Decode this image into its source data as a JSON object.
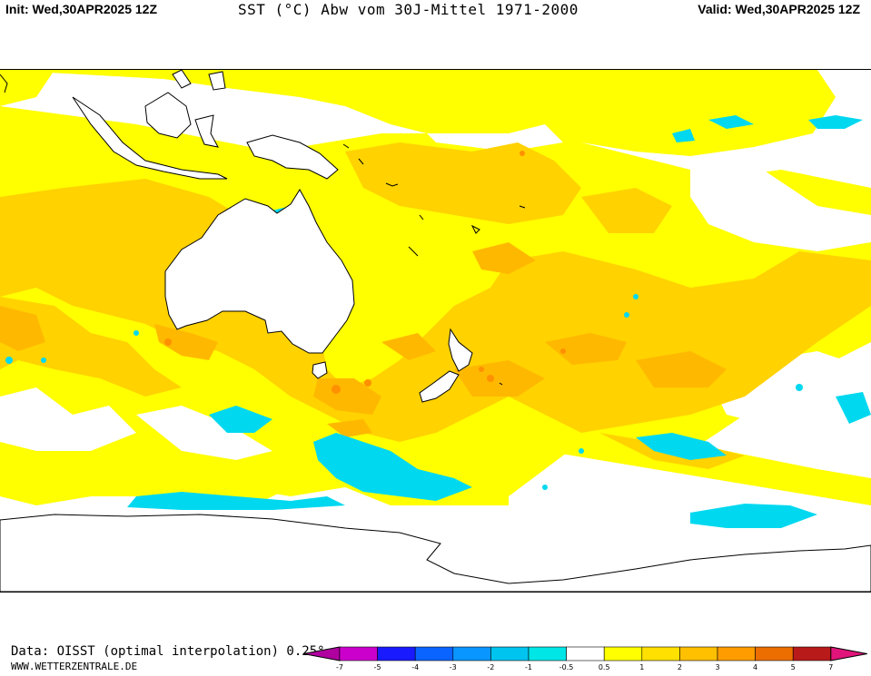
{
  "header": {
    "init": "Init: Wed,30APR2025 12Z",
    "title": "SST (°C) Abw vom 30J-Mittel 1971-2000",
    "valid": "Valid: Wed,30APR2025 12Z"
  },
  "footer": {
    "data_source": "Data: OISST (optimal interpolation) 0.25°",
    "website": "WWW.WETTERZENTRALE.DE"
  },
  "legend": {
    "ticks": [
      "-7",
      "-5",
      "-4",
      "-3",
      "-2",
      "-1",
      "-0.5",
      "0.5",
      "1",
      "2",
      "3",
      "4",
      "5",
      "7"
    ],
    "colors": [
      "#b000a0",
      "#cc00cc",
      "#1a1aff",
      "#0a64ff",
      "#0a96ff",
      "#00c4f0",
      "#00e6e6",
      "#ffffff",
      "#ffff00",
      "#ffe000",
      "#ffc000",
      "#ff9d00",
      "#ec6e00",
      "#b81a1a",
      "#e0147a"
    ]
  },
  "map": {
    "land_color": "#ffffff",
    "coast_color": "#000000",
    "anomaly_palette": {
      "cold_0_5_1": "#00e6e6",
      "cold_1_2": "#00c4f0",
      "warm_0_5_1": "#ffff00",
      "warm_1_2": "#ffe000",
      "warm_2_3": "#ffc000",
      "warm_3_4": "#ff9d00"
    }
  }
}
